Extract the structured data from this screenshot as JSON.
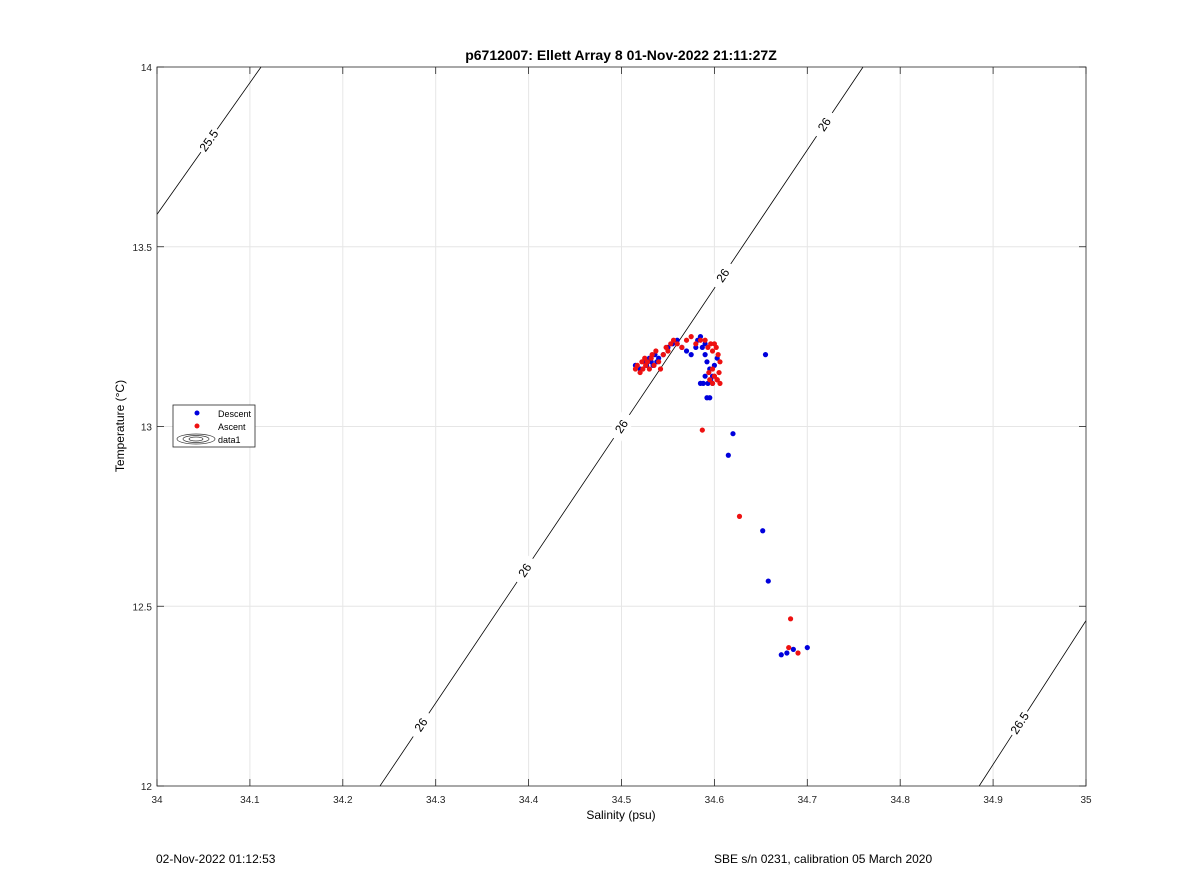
{
  "colors": {
    "descent": "#0000dd",
    "ascent": "#ee1111",
    "grid": "#e6e6e6",
    "contour": "#000000"
  },
  "footer": {
    "left": "02-Nov-2022 01:12:53",
    "right": "SBE s/n 0231, calibration 05 March 2020"
  },
  "chart_data": {
    "type": "scatter",
    "title": "p6712007: Ellett Array 8 01-Nov-2022 21:11:27Z",
    "xlabel": "Salinity (psu)",
    "ylabel": "Temperature (°C)",
    "xlim": [
      34,
      35
    ],
    "ylim": [
      12,
      14
    ],
    "grid": true,
    "legend_position": "left",
    "x_ticks": [
      "34",
      "34.1",
      "34.2",
      "34.3",
      "34.4",
      "34.5",
      "34.6",
      "34.7",
      "34.8",
      "34.9",
      "35"
    ],
    "y_ticks": [
      "12",
      "12.5",
      "13",
      "13.5",
      "14"
    ],
    "legend": [
      "Descent",
      "Ascent",
      "data1"
    ],
    "series": [
      {
        "name": "Descent",
        "x": [
          34.515,
          34.52,
          34.525,
          34.527,
          34.53,
          34.532,
          34.534,
          34.536,
          34.538,
          34.54,
          34.545,
          34.55,
          34.555,
          34.56,
          34.565,
          34.57,
          34.575,
          34.58,
          34.582,
          34.585,
          34.587,
          34.59,
          34.59,
          34.592,
          34.595,
          34.598,
          34.6,
          34.603,
          34.585,
          34.588,
          34.59,
          34.593,
          34.596,
          34.598,
          34.592,
          34.595,
          34.655,
          34.62,
          34.615,
          34.652,
          34.658,
          34.672,
          34.678,
          34.685,
          34.7
        ],
        "y": [
          13.17,
          13.16,
          13.18,
          13.17,
          13.19,
          13.18,
          13.17,
          13.2,
          13.18,
          13.19,
          13.2,
          13.22,
          13.23,
          13.24,
          13.22,
          13.21,
          13.2,
          13.22,
          13.24,
          13.25,
          13.22,
          13.23,
          13.2,
          13.18,
          13.16,
          13.14,
          13.17,
          13.19,
          13.12,
          13.12,
          13.14,
          13.12,
          13.13,
          13.12,
          13.08,
          13.08,
          13.2,
          12.98,
          12.92,
          12.71,
          12.57,
          12.365,
          12.37,
          12.38,
          12.385
        ]
      },
      {
        "name": "Ascent",
        "x": [
          34.515,
          34.517,
          34.52,
          34.522,
          34.523,
          34.525,
          34.526,
          34.528,
          34.53,
          34.532,
          34.533,
          34.535,
          34.537,
          34.54,
          34.542,
          34.545,
          34.548,
          34.55,
          34.553,
          34.556,
          34.56,
          34.565,
          34.57,
          34.575,
          34.58,
          34.585,
          34.59,
          34.593,
          34.596,
          34.598,
          34.6,
          34.602,
          34.604,
          34.606,
          34.605,
          34.603,
          34.6,
          34.598,
          34.595,
          34.594,
          34.598,
          34.6,
          34.603,
          34.606,
          34.587,
          34.627,
          34.682,
          34.68,
          34.69
        ],
        "y": [
          13.16,
          13.17,
          13.15,
          13.18,
          13.16,
          13.19,
          13.17,
          13.18,
          13.16,
          13.19,
          13.2,
          13.17,
          13.21,
          13.18,
          13.16,
          13.2,
          13.22,
          13.21,
          13.23,
          13.24,
          13.23,
          13.22,
          13.24,
          13.25,
          13.23,
          13.24,
          13.24,
          13.22,
          13.23,
          13.21,
          13.23,
          13.22,
          13.2,
          13.18,
          13.15,
          13.13,
          13.14,
          13.12,
          13.13,
          13.15,
          13.16,
          13.14,
          13.13,
          13.12,
          12.99,
          12.75,
          12.465,
          12.385,
          12.37
        ]
      }
    ],
    "contours": [
      {
        "label": "25.5",
        "points": [
          [
            34,
            13.59
          ],
          [
            34.112,
            14
          ]
        ]
      },
      {
        "label": "26",
        "points": [
          [
            34.24,
            12
          ],
          [
            34.76,
            14
          ]
        ]
      },
      {
        "label": "26.5",
        "points": [
          [
            34.885,
            12
          ],
          [
            35,
            12.46
          ]
        ]
      }
    ]
  }
}
